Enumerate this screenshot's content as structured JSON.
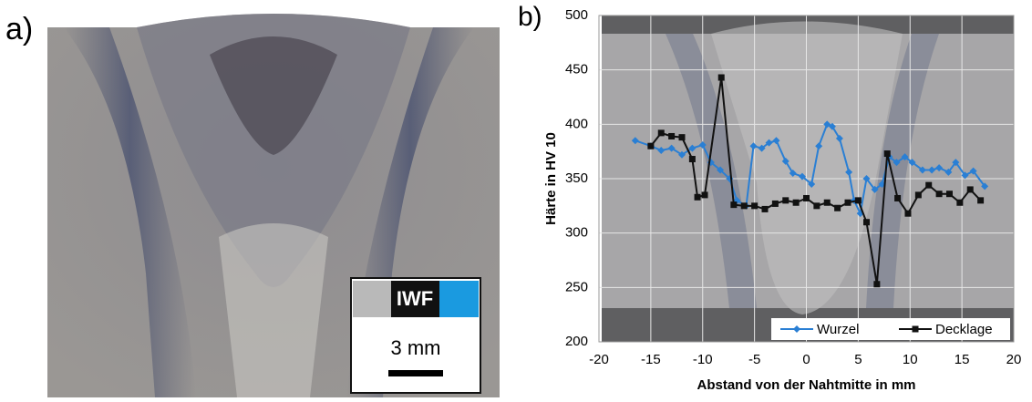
{
  "panels": {
    "a": {
      "label": "a)",
      "logo": "IWF",
      "scale": "3 mm"
    },
    "b": {
      "label": "b)"
    }
  },
  "chart_data": {
    "type": "line",
    "x_label": "Abstand von der Nahtmitte in mm",
    "y_label": "Härte in HV 10",
    "xlim": [
      -20,
      20
    ],
    "xticks": [
      -20,
      -15,
      -10,
      -5,
      0,
      5,
      10,
      15,
      20
    ],
    "ylim": [
      200,
      500
    ],
    "yticks": [
      200,
      250,
      300,
      350,
      400,
      450,
      500
    ],
    "grid": true,
    "legend": "bottom-right",
    "series": [
      {
        "name": "Wurzel",
        "color": "#2a7fd4",
        "marker": "diamond",
        "x": [
          -16.5,
          -15,
          -14,
          -13,
          -12,
          -11,
          -10,
          -9.2,
          -8.3,
          -7.4,
          -6.7,
          -5.8,
          -5.1,
          -4.3,
          -3.6,
          -2.9,
          -2,
          -1.3,
          -0.4,
          0.5,
          1.2,
          2,
          2.5,
          3.2,
          4.1,
          4.6,
          5.2,
          5.8,
          6.6,
          7.3,
          8,
          8.7,
          9.5,
          10.2,
          11.2,
          12.1,
          12.8,
          13.7,
          14.4,
          15.3,
          16.1,
          17.2
        ],
        "values": [
          385,
          380,
          376,
          378,
          372,
          378,
          381,
          365,
          358,
          350,
          330,
          325,
          380,
          378,
          383,
          385,
          366,
          355,
          352,
          345,
          380,
          400,
          398,
          387,
          356,
          330,
          318,
          350,
          340,
          345,
          370,
          365,
          370,
          365,
          358,
          358,
          360,
          356,
          365,
          353,
          357,
          343
        ]
      },
      {
        "name": "Decklage",
        "color": "#111111",
        "marker": "square",
        "x": [
          -15,
          -14,
          -13,
          -12,
          -11,
          -10.5,
          -9.8,
          -8.2,
          -7,
          -6,
          -5,
          -4,
          -3,
          -2,
          -1,
          0,
          1,
          2,
          3,
          4,
          5,
          5.8,
          6.8,
          7.8,
          8.8,
          9.8,
          10.8,
          11.8,
          12.8,
          13.8,
          14.8,
          15.8,
          16.8
        ],
        "values": [
          380,
          392,
          389,
          388,
          368,
          333,
          335,
          443,
          326,
          325,
          325,
          322,
          327,
          330,
          328,
          332,
          325,
          328,
          323,
          328,
          330,
          310,
          253,
          373,
          332,
          318,
          335,
          344,
          336,
          336,
          328,
          340,
          330
        ]
      }
    ]
  }
}
